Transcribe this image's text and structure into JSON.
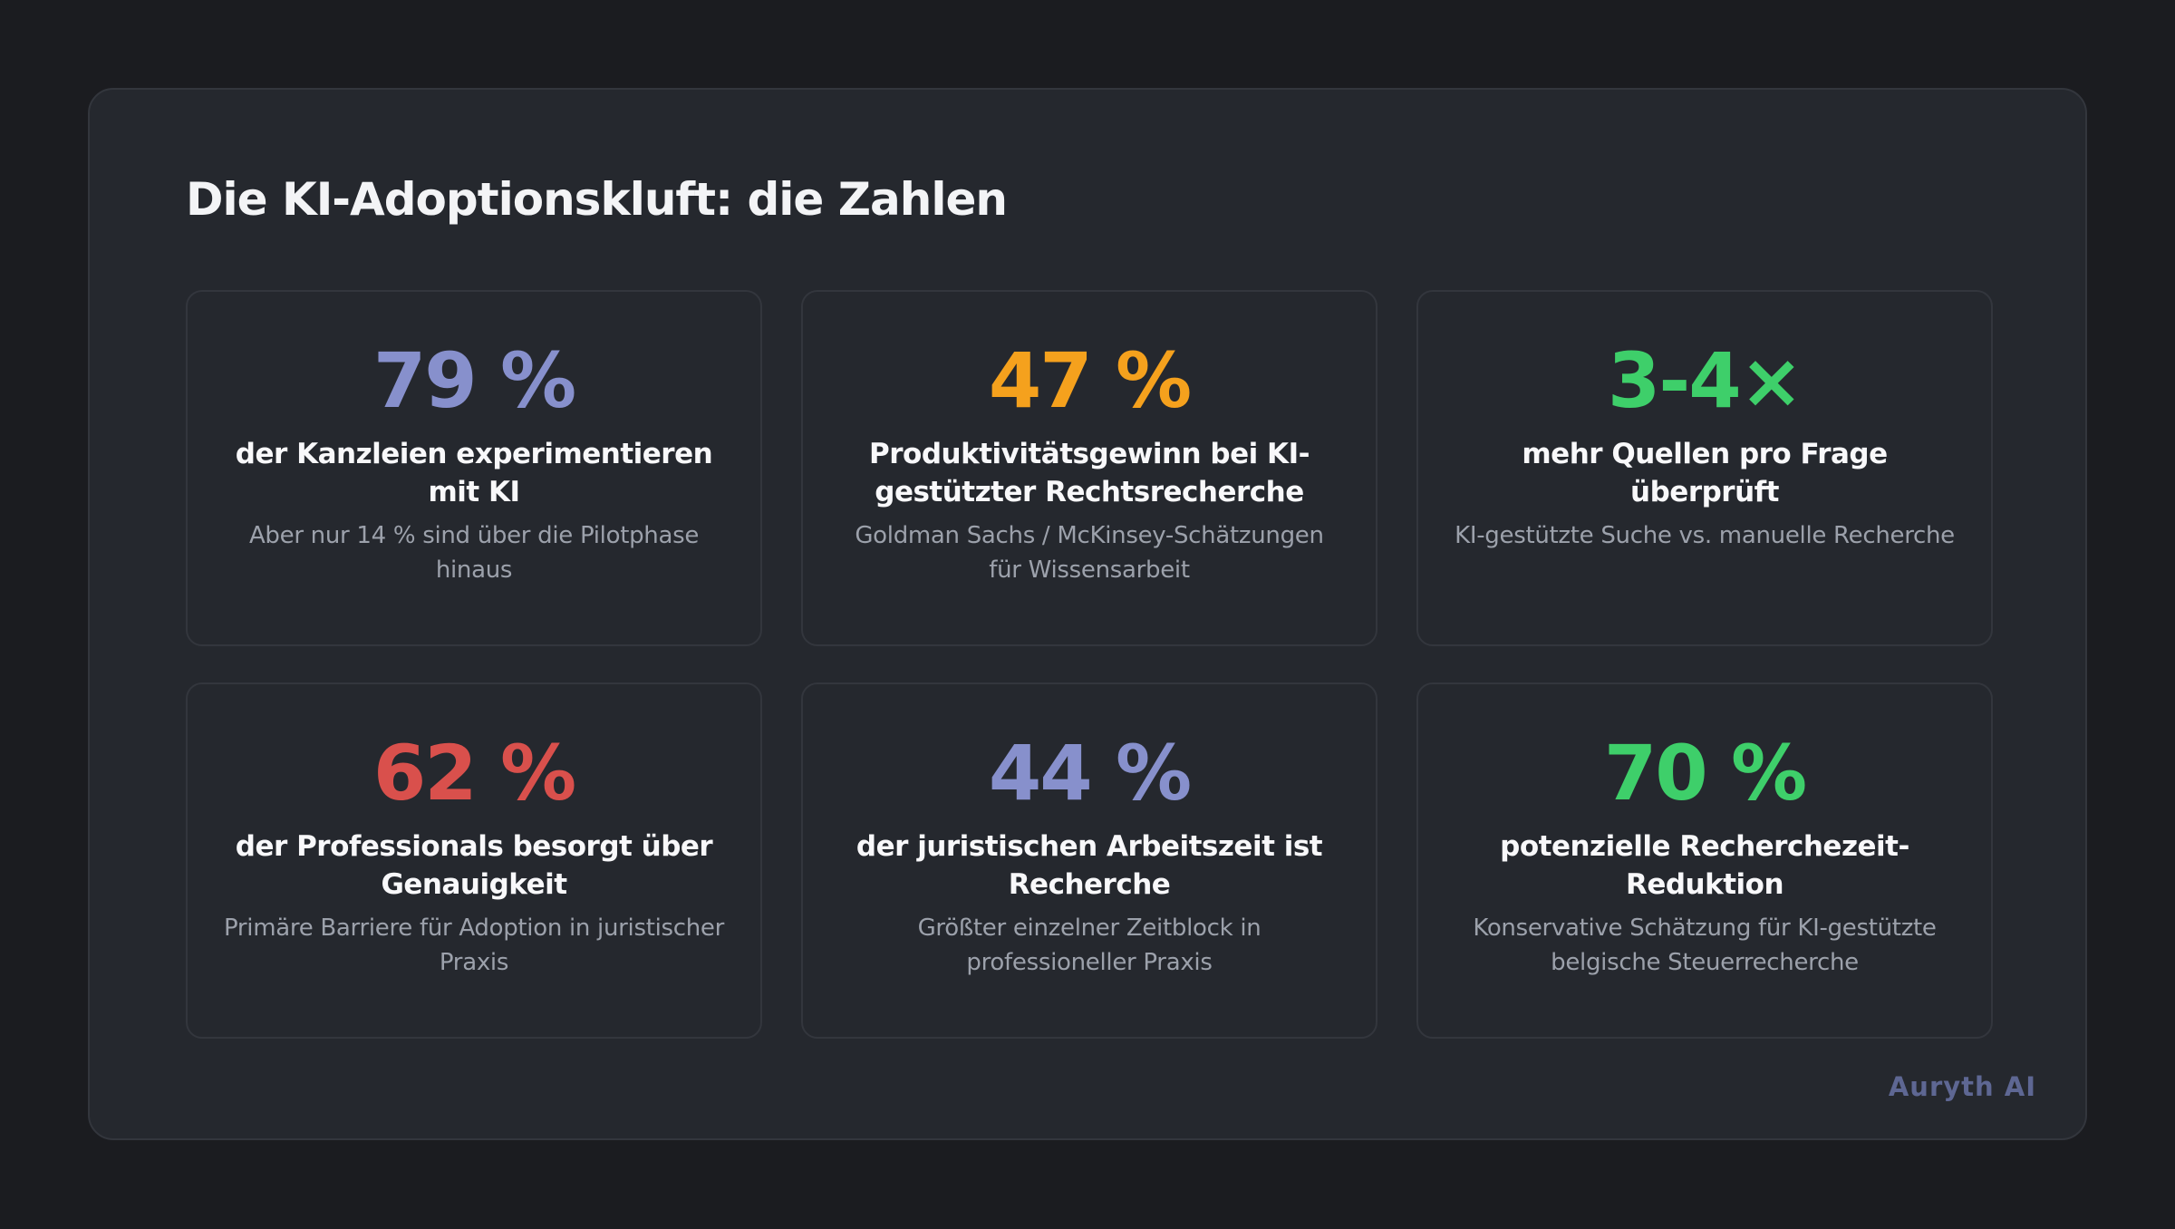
{
  "title": "Die KI-Adoptionskluft: die Zahlen",
  "brand": "Auryth AI",
  "cards": [
    {
      "value": "79 %",
      "label": "der Kanzleien experimentieren mit KI",
      "sub": "Aber nur 14 % sind über die Pilotphase hinaus",
      "color": "#8790cc"
    },
    {
      "value": "47 %",
      "label": "Produktivitätsgewinn bei KI-gestützter Rechtsrecherche",
      "sub": "Goldman Sachs / McKinsey-Schätzungen für Wissensarbeit",
      "color": "#f5a11d"
    },
    {
      "value": "3-4×",
      "label": "mehr Quellen pro Frage überprüft",
      "sub": "KI-gestützte Suche vs. manuelle Recherche",
      "color": "#3ecf6a"
    },
    {
      "value": "62 %",
      "label": "der Professionals besorgt über Genauigkeit",
      "sub": "Primäre Barriere für Adoption in juristischer Praxis",
      "color": "#d9504c"
    },
    {
      "value": "44 %",
      "label": "der juristischen Arbeitszeit ist Recherche",
      "sub": "Größter einzelner Zeitblock in professioneller Praxis",
      "color": "#8790cc"
    },
    {
      "value": "70 %",
      "label": "potenzielle Recherchezeit-Reduktion",
      "sub": "Konservative Schätzung für KI-gestützte belgische Steuerrecherche",
      "color": "#3ecf6a"
    }
  ]
}
